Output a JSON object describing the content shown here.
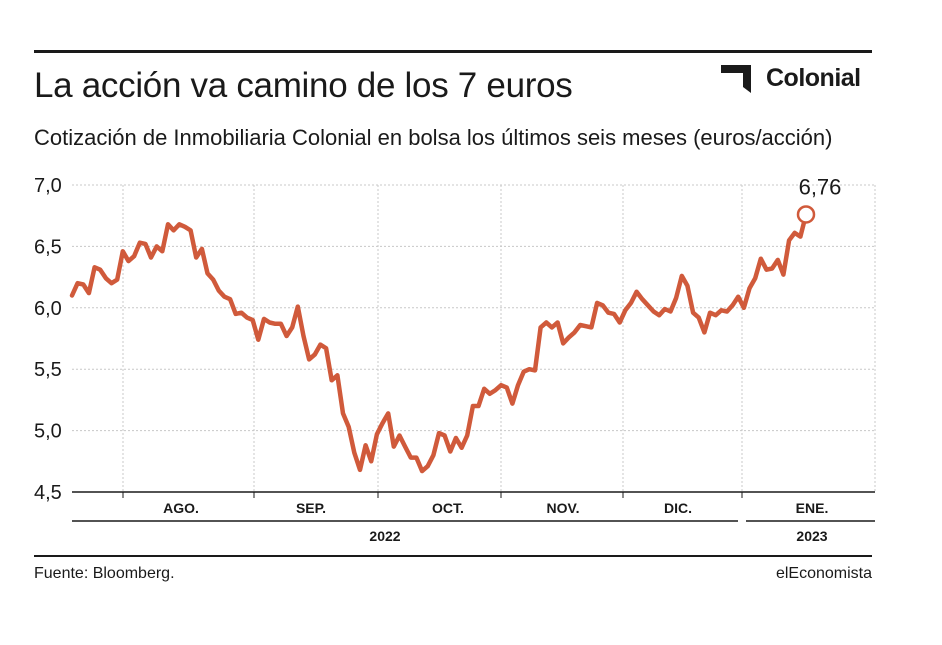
{
  "header": {
    "title": "La acción va camino de los 7 euros",
    "subtitle": "Cotización de Inmobiliaria Colonial en bolsa los últimos seis meses (euros/acción)",
    "logo_text": "Colonial"
  },
  "footer": {
    "source": "Fuente: Bloomberg.",
    "brand": "elEconomista"
  },
  "colors": {
    "line": "#d05a3b",
    "grid": "#c8c8c8",
    "text": "#1a1a1a"
  },
  "chart_data": {
    "type": "line",
    "title": "La acción va camino de los 7 euros",
    "subtitle": "Cotización de Inmobiliaria Colonial en bolsa los últimos seis meses (euros/acción)",
    "xlabel": "",
    "ylabel": "",
    "ylim": [
      4.5,
      7.0
    ],
    "y_ticks": [
      "7,0",
      "6,5",
      "6,0",
      "5,5",
      "5,0",
      "4,5"
    ],
    "y_tick_values": [
      7.0,
      6.5,
      6.0,
      5.5,
      5.0,
      4.5
    ],
    "x_month_labels": [
      "AGO.",
      "SEP.",
      "OCT.",
      "NOV.",
      "DIC.",
      "ENE."
    ],
    "x_year_labels": [
      "2022",
      "2023"
    ],
    "grid": true,
    "annotation": {
      "label": "6,76",
      "value": 6.76
    },
    "series": [
      {
        "values": [
          6.1,
          6.2,
          6.19,
          6.12,
          6.33,
          6.31,
          6.24,
          6.2,
          6.23,
          6.46,
          6.38,
          6.42,
          6.53,
          6.52,
          6.41,
          6.5,
          6.46,
          6.68,
          6.63,
          6.68,
          6.66,
          6.63,
          6.41,
          6.48,
          6.28,
          6.23,
          6.14,
          6.09,
          6.07,
          5.95,
          5.96,
          5.92,
          5.9,
          5.74,
          5.91,
          5.88,
          5.87,
          5.87,
          5.77,
          5.84,
          6.01,
          5.77,
          5.58,
          5.62,
          5.7,
          5.67,
          5.41,
          5.45,
          5.14,
          5.03,
          4.82,
          4.68,
          4.88,
          4.75,
          4.97,
          5.06,
          5.14,
          4.87,
          4.96,
          4.87,
          4.78,
          4.78,
          4.67,
          4.71,
          4.8,
          4.98,
          4.96,
          4.83,
          4.94,
          4.86,
          4.96,
          5.2,
          5.2,
          5.34,
          5.3,
          5.33,
          5.37,
          5.35,
          5.22,
          5.37,
          5.48,
          5.5,
          5.49,
          5.84,
          5.88,
          5.84,
          5.88,
          5.71,
          5.76,
          5.8,
          5.86,
          5.85,
          5.84,
          6.04,
          6.02,
          5.96,
          5.95,
          5.88,
          5.98,
          6.04,
          6.13,
          6.07,
          6.02,
          5.97,
          5.94,
          5.99,
          5.97,
          6.08,
          6.26,
          6.18,
          5.96,
          5.92,
          5.8,
          5.96,
          5.94,
          5.98,
          5.97,
          6.02,
          6.09,
          6.0,
          6.16,
          6.24,
          6.4,
          6.31,
          6.32,
          6.39,
          6.27,
          6.55,
          6.61,
          6.58,
          6.76
        ]
      }
    ]
  }
}
